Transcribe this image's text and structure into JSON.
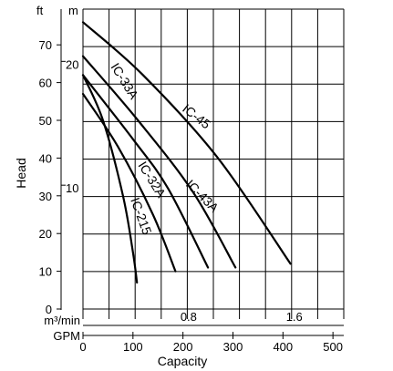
{
  "chart_data": {
    "type": "line",
    "ylabel": "Head",
    "xlabel": "Capacity",
    "unit_ft": "ft",
    "unit_m": "m",
    "flow_unit": "m³/min",
    "gpm_unit": "GPM",
    "ft_ticks": [
      "0",
      "10",
      "20",
      "30",
      "40",
      "50",
      "60",
      "70"
    ],
    "m_ticks": [
      "10",
      "20"
    ],
    "gpm_ticks": [
      "0",
      "100",
      "200",
      "300",
      "400",
      "500"
    ],
    "flow_ticks": [
      "0.8",
      "1.6"
    ],
    "ylim_ft": [
      0,
      80
    ],
    "xlim_gpm": [
      0,
      525
    ],
    "colors": {
      "curve": "#000000",
      "label": "#1a6fb0",
      "grid": "#000000"
    },
    "series": [
      {
        "name": "IC-215",
        "x": [
          0,
          40,
          80,
          100,
          108
        ],
        "y": [
          62,
          50,
          30,
          15,
          7
        ]
      },
      {
        "name": "IC-32A",
        "x": [
          0,
          70,
          140,
          185
        ],
        "y": [
          57,
          43,
          25,
          10
        ]
      },
      {
        "name": "IC-33A",
        "x": [
          0,
          100,
          170,
          250
        ],
        "y": [
          62,
          45,
          32,
          11
        ]
      },
      {
        "name": "IC-43A",
        "x": [
          0,
          110,
          220,
          305
        ],
        "y": [
          67,
          50,
          31,
          11
        ]
      },
      {
        "name": "IC-45",
        "x": [
          0,
          120,
          270,
          415
        ],
        "y": [
          76,
          62,
          40,
          12
        ]
      }
    ]
  }
}
